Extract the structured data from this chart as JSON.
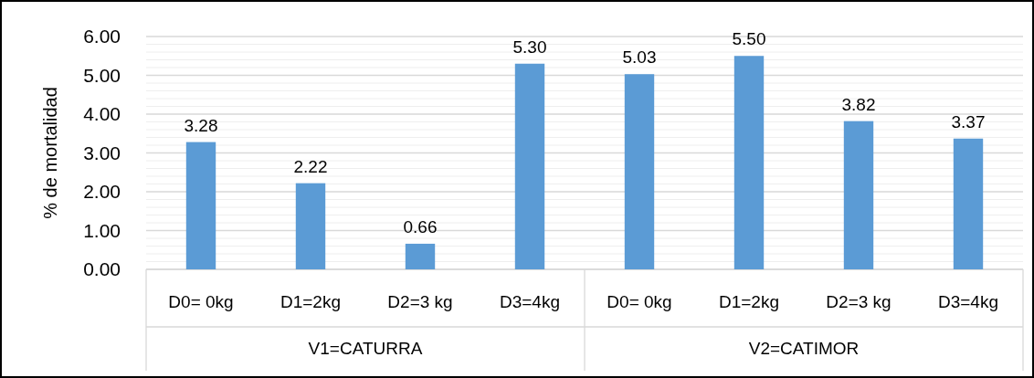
{
  "chart_data": {
    "type": "bar",
    "ylabel": "% de mortalidad",
    "categories": [
      "D0= 0kg",
      "D1=2kg",
      "D2=3 kg",
      "D3=4kg",
      "D0= 0kg",
      "D1=2kg",
      "D2=3 kg",
      "D3=4kg"
    ],
    "values": [
      3.28,
      2.22,
      0.66,
      5.3,
      5.03,
      5.5,
      3.82,
      3.37
    ],
    "color": "#5b9bd5",
    "value_labels": [
      "3.28",
      "2.22",
      "0.66",
      "5.30",
      "5.03",
      "5.50",
      "3.82",
      "3.37"
    ],
    "annotations": [
      "V1=CATURRA",
      "V2=CATIMOR"
    ],
    "ylim": [
      0,
      6
    ],
    "yticks": [
      {
        "value": 0,
        "label": "0.00"
      },
      {
        "value": 0.2,
        "label": null
      },
      {
        "value": 0.4,
        "label": null
      },
      {
        "value": 0.6,
        "label": null
      },
      {
        "value": 0.8,
        "label": null
      },
      {
        "value": 1,
        "label": "1.00"
      },
      {
        "value": 1.2,
        "label": null
      },
      {
        "value": 1.4,
        "label": null
      },
      {
        "value": 1.6,
        "label": null
      },
      {
        "value": 1.8,
        "label": null
      },
      {
        "value": 2,
        "label": "2.00"
      },
      {
        "value": 2.2,
        "label": null
      },
      {
        "value": 2.4,
        "label": null
      },
      {
        "value": 2.6,
        "label": null
      },
      {
        "value": 2.8,
        "label": null
      },
      {
        "value": 3,
        "label": "3.00"
      },
      {
        "value": 3.2,
        "label": null
      },
      {
        "value": 3.4,
        "label": null
      },
      {
        "value": 3.6,
        "label": null
      },
      {
        "value": 3.8,
        "label": null
      },
      {
        "value": 4,
        "label": "4.00"
      },
      {
        "value": 4.2,
        "label": null
      },
      {
        "value": 4.4,
        "label": null
      },
      {
        "value": 4.6,
        "label": null
      },
      {
        "value": 4.8,
        "label": null
      },
      {
        "value": 5,
        "label": "5.00"
      },
      {
        "value": 5.2,
        "label": null
      },
      {
        "value": 5.4,
        "label": null
      },
      {
        "value": 5.6,
        "label": null
      },
      {
        "value": 5.8,
        "label": null
      },
      {
        "value": 6,
        "label": "6.00"
      }
    ],
    "grid": true
  }
}
